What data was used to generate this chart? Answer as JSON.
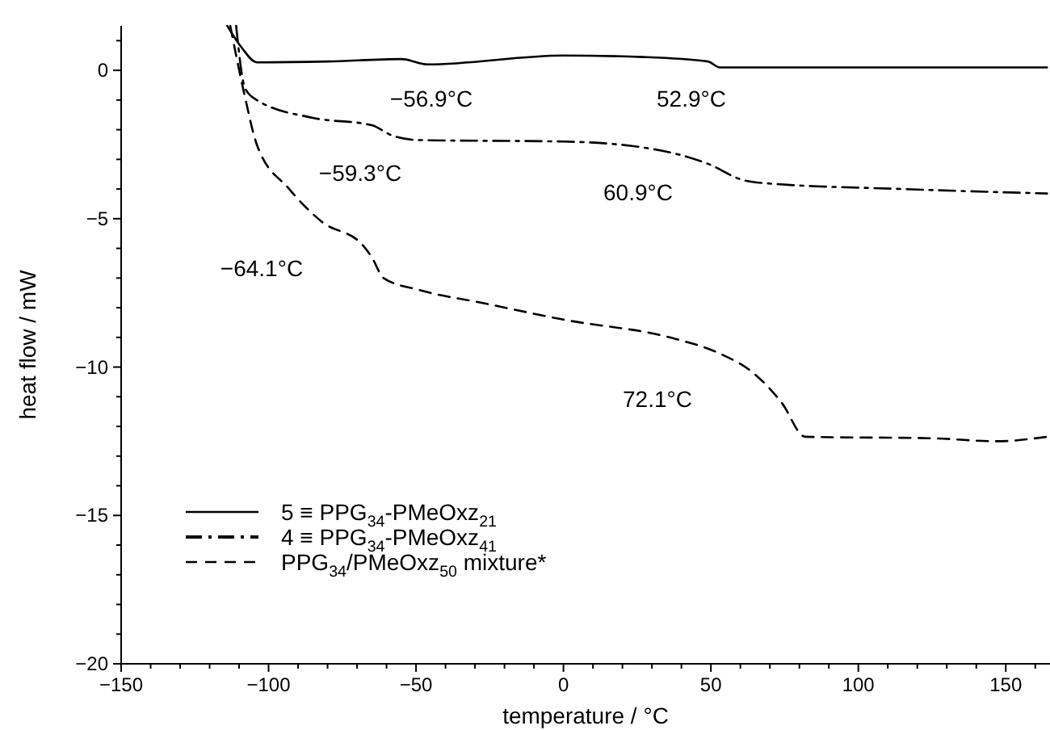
{
  "chart_data": {
    "type": "line",
    "xlabel": "temperature / °C",
    "ylabel": "heat flow / mW",
    "xlim": [
      -150,
      165
    ],
    "ylim": [
      -20,
      1.5
    ],
    "xticks": [
      -150,
      {
        "value": -140,
        "label": null
      },
      {
        "value": -130,
        "label": null
      },
      {
        "value": -120,
        "label": null
      },
      {
        "value": -110,
        "label": null
      },
      -100,
      {
        "value": -90,
        "label": null
      },
      {
        "value": -80,
        "label": null
      },
      {
        "value": -70,
        "label": null
      },
      {
        "value": -60,
        "label": null
      },
      -50,
      {
        "value": -40,
        "label": null
      },
      {
        "value": -30,
        "label": null
      },
      {
        "value": -20,
        "label": null
      },
      {
        "value": -10,
        "label": null
      },
      0,
      {
        "value": 10,
        "label": null
      },
      {
        "value": 20,
        "label": null
      },
      {
        "value": 30,
        "label": null
      },
      {
        "value": 40,
        "label": null
      },
      50,
      {
        "value": 60,
        "label": null
      },
      {
        "value": 70,
        "label": null
      },
      {
        "value": 80,
        "label": null
      },
      {
        "value": 90,
        "label": null
      },
      100,
      {
        "value": 110,
        "label": null
      },
      {
        "value": 120,
        "label": null
      },
      {
        "value": 130,
        "label": null
      },
      {
        "value": 140,
        "label": null
      },
      150,
      {
        "value": 160,
        "label": null
      }
    ],
    "yticks": [
      -20,
      {
        "value": -19,
        "label": null
      },
      {
        "value": -18,
        "label": null
      },
      {
        "value": -17,
        "label": null
      },
      {
        "value": -16,
        "label": null
      },
      -15,
      {
        "value": -14,
        "label": null
      },
      {
        "value": -13,
        "label": null
      },
      {
        "value": -12,
        "label": null
      },
      {
        "value": -11,
        "label": null
      },
      -10,
      {
        "value": -9,
        "label": null
      },
      {
        "value": -8,
        "label": null
      },
      {
        "value": -7,
        "label": null
      },
      {
        "value": -6,
        "label": null
      },
      -5,
      {
        "value": -4,
        "label": null
      },
      {
        "value": -3,
        "label": null
      },
      {
        "value": -2,
        "label": null
      },
      {
        "value": -1,
        "label": null
      },
      0,
      {
        "value": 1,
        "label": null
      }
    ],
    "grid": false,
    "legend": "bottom left",
    "marker": "none",
    "series": [
      {
        "name": "5 ≡ PPG$_{34}$-PMeOxz$_{21}$",
        "color": "#000000",
        "line_style": "solid",
        "x": [
          -114,
          -109,
          -104,
          -80,
          -55,
          -46,
          0,
          27,
          49,
          53,
          100,
          164
        ],
        "values": [
          1.5,
          0.75,
          0.27,
          0.3,
          0.38,
          0.2,
          0.5,
          0.45,
          0.3,
          0.1,
          0.1,
          0.1
        ]
      },
      {
        "name": "4 ≡ PPG$_{34}$-PMeOxz$_{41}$",
        "color": "#000000",
        "line_style": "dashdot",
        "x": [
          -111,
          -108,
          -104,
          -85,
          -65,
          -58,
          -49,
          0,
          27,
          49,
          61,
          68,
          115,
          164
        ],
        "values": [
          1.5,
          -0.6,
          -1.0,
          -1.6,
          -1.85,
          -2.2,
          -2.35,
          -2.4,
          -2.6,
          -3.15,
          -3.7,
          -3.8,
          -4.0,
          -4.15
        ]
      },
      {
        "name": "PPG$_{34}$/PMeOxz$_{50}$ mixture*",
        "color": "#000000",
        "line_style": "dashed",
        "x": [
          -113,
          -108,
          -104,
          -93,
          -82,
          -68,
          -65,
          -61,
          -49,
          -27,
          0,
          38,
          52,
          65,
          74,
          82,
          125,
          147,
          164
        ],
        "values": [
          1.5,
          -0.9,
          -2.5,
          -4.0,
          -5.1,
          -5.9,
          -6.3,
          -7.0,
          -7.4,
          -7.85,
          -8.4,
          -9.05,
          -9.5,
          -10.25,
          -11.2,
          -12.35,
          -12.4,
          -12.5,
          -12.35
        ]
      }
    ],
    "annotations": [
      "−56.9°C",
      "52.9°C",
      "−59.3°C",
      "60.9°C",
      "−64.1°C",
      "72.1°C"
    ]
  }
}
